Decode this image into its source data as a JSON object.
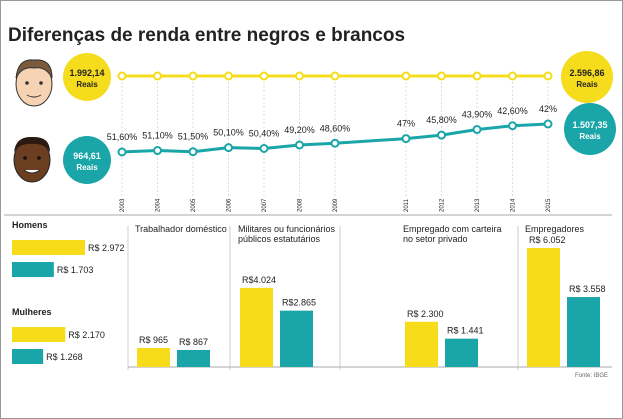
{
  "title": "Diferenças de renda entre negros e brancos",
  "badges": {
    "white_start": {
      "amount": "1.992,14",
      "unit": "Reais"
    },
    "black_start": {
      "amount": "964,61",
      "unit": "Reais"
    },
    "white_end": {
      "amount": "2.596,86",
      "unit": "Reais"
    },
    "black_end": {
      "amount": "1.507,35",
      "unit": "Reais"
    }
  },
  "trend": {
    "type": "line",
    "x": [
      2003,
      2004,
      2005,
      2006,
      2007,
      2008,
      2009,
      2011,
      2012,
      2013,
      2014,
      2015
    ],
    "values": [
      51.6,
      51.1,
      51.5,
      50.1,
      50.4,
      49.2,
      48.6,
      47,
      45.8,
      43.9,
      42.6,
      42
    ],
    "value_labels": [
      "51,60%",
      "51,10%",
      "51,50%",
      "50,10%",
      "50,40%",
      "49,20%",
      "48,60%",
      "47%",
      "45,80%",
      "43,90%",
      "42,60%",
      "42%"
    ],
    "color": "#1aa5a8",
    "reference_color": "#f5dc1c"
  },
  "gender": {
    "type": "bar",
    "colors": [
      "#f7dc1a",
      "#1aa5a8"
    ],
    "groups": [
      {
        "label": "Homens",
        "values": [
          2972,
          1703
        ],
        "value_labels": [
          "R$ 2.972",
          "R$ 1.703"
        ]
      },
      {
        "label": "Mulheres",
        "values": [
          2170,
          1268
        ],
        "value_labels": [
          "R$ 2.170",
          "R$ 1.268"
        ]
      }
    ]
  },
  "sectors": {
    "type": "bar",
    "colors": [
      "#f7dc1a",
      "#1aa5a8"
    ],
    "groups": [
      {
        "label": [
          "Trabalhador doméstico"
        ],
        "values": [
          965,
          867
        ],
        "value_labels": [
          "R$ 965",
          "R$ 867"
        ]
      },
      {
        "label": [
          "Militares ou funcionários",
          "públicos estatutários"
        ],
        "values": [
          4024,
          2865
        ],
        "value_labels": [
          "R$4.024",
          "R$2.865"
        ]
      },
      {
        "label": [
          "Empregado com carteira",
          "no setor privado"
        ],
        "values": [
          2300,
          1441
        ],
        "value_labels": [
          "R$ 2.300",
          "R$ 1.441"
        ]
      },
      {
        "label": [
          "Empregadores"
        ],
        "values": [
          6052,
          3558
        ],
        "value_labels": [
          "R$ 6.052",
          "R$ 3.558"
        ]
      }
    ]
  },
  "source": "Fonte: IBGE"
}
